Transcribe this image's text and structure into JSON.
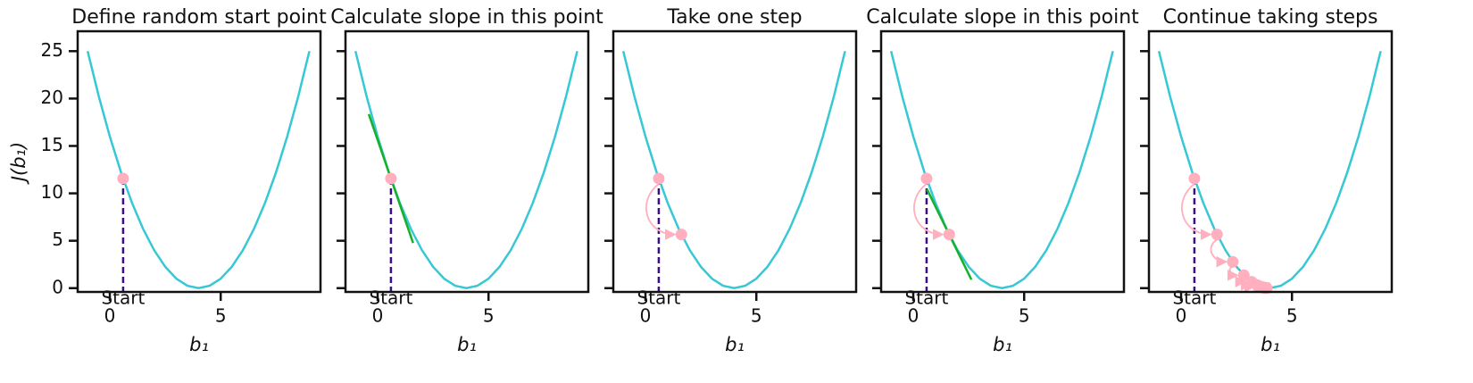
{
  "chart_data": [
    {
      "type": "line",
      "title": "Define random start point",
      "xlabel": "b₁",
      "ylabel": "J(b₁)",
      "annotation": "Start",
      "xlim": [
        -1.45,
        9.5
      ],
      "ylim": [
        -0.4,
        27.1
      ],
      "xticks": [
        0,
        5
      ],
      "yticks": [
        0,
        5,
        10,
        15,
        20,
        25
      ],
      "curve": {
        "color": "#36c8d4",
        "x": [
          -1,
          -0.5,
          0,
          0.5,
          1,
          1.5,
          2,
          2.5,
          3,
          3.5,
          4,
          4.5,
          5,
          5.5,
          6,
          6.5,
          7,
          7.5,
          8,
          8.5,
          9
        ],
        "y": [
          25,
          20.25,
          16,
          12.25,
          9,
          6.25,
          4,
          2.25,
          1,
          0.25,
          0,
          0.25,
          1,
          2.25,
          4,
          6.25,
          9,
          12.25,
          16,
          20.25,
          25
        ]
      },
      "steps": {
        "color": "#ffafbe",
        "x": [
          0.6
        ],
        "y": [
          11.56
        ]
      },
      "guide_color": "#3a0f8c"
    },
    {
      "type": "line",
      "title": "Calculate slope in this point",
      "xlabel": "b₁",
      "annotation": "Start",
      "xlim": [
        -1.45,
        9.5
      ],
      "ylim": [
        -0.4,
        27.1
      ],
      "xticks": [
        0,
        5
      ],
      "yticks": [
        0,
        5,
        10,
        15,
        20,
        25
      ],
      "curve": {
        "color": "#36c8d4",
        "x": [
          -1,
          -0.5,
          0,
          0.5,
          1,
          1.5,
          2,
          2.5,
          3,
          3.5,
          4,
          4.5,
          5,
          5.5,
          6,
          6.5,
          7,
          7.5,
          8,
          8.5,
          9
        ],
        "y": [
          25,
          20.25,
          16,
          12.25,
          9,
          6.25,
          4,
          2.25,
          1,
          0.25,
          0,
          0.25,
          1,
          2.25,
          4,
          6.25,
          9,
          12.25,
          16,
          20.25,
          25
        ]
      },
      "tangent": {
        "color": "#16b02a",
        "x": [
          -0.4,
          1.6
        ],
        "y": [
          18.36,
          4.76
        ]
      },
      "steps": {
        "color": "#ffafbe",
        "x": [
          0.6
        ],
        "y": [
          11.56
        ]
      },
      "guide_color": "#3a0f8c"
    },
    {
      "type": "line",
      "title": "Take one step",
      "xlabel": "b₁",
      "annotation": "Start",
      "xlim": [
        -1.45,
        9.5
      ],
      "ylim": [
        -0.4,
        27.1
      ],
      "xticks": [
        0,
        5
      ],
      "yticks": [
        0,
        5,
        10,
        15,
        20,
        25
      ],
      "curve": {
        "color": "#36c8d4",
        "x": [
          -1,
          -0.5,
          0,
          0.5,
          1,
          1.5,
          2,
          2.5,
          3,
          3.5,
          4,
          4.5,
          5,
          5.5,
          6,
          6.5,
          7,
          7.5,
          8,
          8.5,
          9
        ],
        "y": [
          25,
          20.25,
          16,
          12.25,
          9,
          6.25,
          4,
          2.25,
          1,
          0.25,
          0,
          0.25,
          1,
          2.25,
          4,
          6.25,
          9,
          12.25,
          16,
          20.25,
          25
        ]
      },
      "steps": {
        "color": "#ffafbe",
        "x": [
          0.6,
          1.62
        ],
        "y": [
          11.56,
          5.66
        ]
      },
      "guide_color": "#3a0f8c"
    },
    {
      "type": "line",
      "title": "Calculate slope in this point",
      "xlabel": "b₁",
      "annotation": "Start",
      "xlim": [
        -1.45,
        9.5
      ],
      "ylim": [
        -0.4,
        27.1
      ],
      "xticks": [
        0,
        5
      ],
      "yticks": [
        0,
        5,
        10,
        15,
        20,
        25
      ],
      "curve": {
        "color": "#36c8d4",
        "x": [
          -1,
          -0.5,
          0,
          0.5,
          1,
          1.5,
          2,
          2.5,
          3,
          3.5,
          4,
          4.5,
          5,
          5.5,
          6,
          6.5,
          7,
          7.5,
          8,
          8.5,
          9
        ],
        "y": [
          25,
          20.25,
          16,
          12.25,
          9,
          6.25,
          4,
          2.25,
          1,
          0.25,
          0,
          0.25,
          1,
          2.25,
          4,
          6.25,
          9,
          12.25,
          16,
          20.25,
          25
        ]
      },
      "tangent": {
        "color": "#16b02a",
        "x": [
          0.62,
          2.62
        ],
        "y": [
          10.42,
          0.9
        ]
      },
      "steps": {
        "color": "#ffafbe",
        "x": [
          0.6,
          1.62
        ],
        "y": [
          11.56,
          5.66
        ]
      },
      "guide_color": "#3a0f8c"
    },
    {
      "type": "line",
      "title": "Continue taking steps",
      "xlabel": "b₁",
      "annotation": "Start",
      "xlim": [
        -1.45,
        9.5
      ],
      "ylim": [
        -0.4,
        27.1
      ],
      "xticks": [
        0,
        5
      ],
      "yticks": [
        0,
        5,
        10,
        15,
        20,
        25
      ],
      "curve": {
        "color": "#36c8d4",
        "x": [
          -1,
          -0.5,
          0,
          0.5,
          1,
          1.5,
          2,
          2.5,
          3,
          3.5,
          4,
          4.5,
          5,
          5.5,
          6,
          6.5,
          7,
          7.5,
          8,
          8.5,
          9
        ],
        "y": [
          25,
          20.25,
          16,
          12.25,
          9,
          6.25,
          4,
          2.25,
          1,
          0.25,
          0,
          0.25,
          1,
          2.25,
          4,
          6.25,
          9,
          12.25,
          16,
          20.25,
          25
        ]
      },
      "steps": {
        "color": "#ffafbe",
        "x": [
          0.6,
          1.62,
          2.33,
          2.83,
          3.18,
          3.43,
          3.6,
          3.72,
          3.8,
          3.86
        ],
        "y": [
          11.56,
          5.66,
          2.78,
          1.36,
          0.67,
          0.33,
          0.16,
          0.08,
          0.04,
          0.02
        ]
      },
      "guide_color": "#3a0f8c"
    }
  ]
}
